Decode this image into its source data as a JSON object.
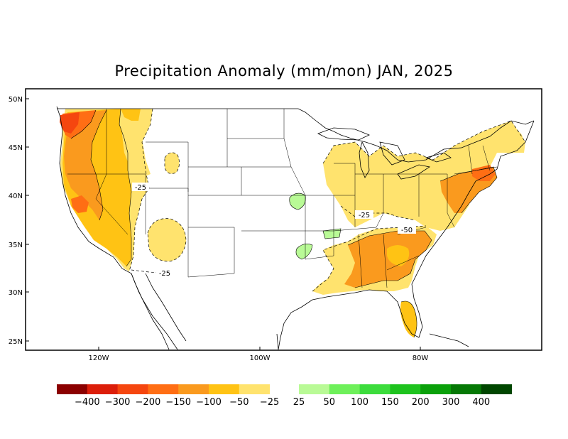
{
  "title": "Precipitation Anomaly (mm/mon) JAN, 2025",
  "axes": {
    "lat_ticks": [
      "50N",
      "45N",
      "40N",
      "35N",
      "30N",
      "25N"
    ],
    "lon_ticks": [
      "120W",
      "100W",
      "80W"
    ]
  },
  "contour_labels": [
    "-25",
    "-25",
    "-25",
    "-50"
  ],
  "colorbar": {
    "labels": [
      "−400",
      "−300",
      "−200",
      "−150",
      "−100",
      "−50",
      "−25",
      "25",
      "50",
      "100",
      "150",
      "200",
      "300",
      "400"
    ],
    "dry_colors": [
      "#8b0000",
      "#dc1e0a",
      "#f5460f",
      "#ff6e14",
      "#fa9a1e",
      "#ffc314",
      "#ffe36e"
    ],
    "wet_colors": [
      "#b9fa96",
      "#6ef05a",
      "#3cdc3c",
      "#1ec31e",
      "#0aa00a",
      "#057805",
      "#004600"
    ]
  }
}
